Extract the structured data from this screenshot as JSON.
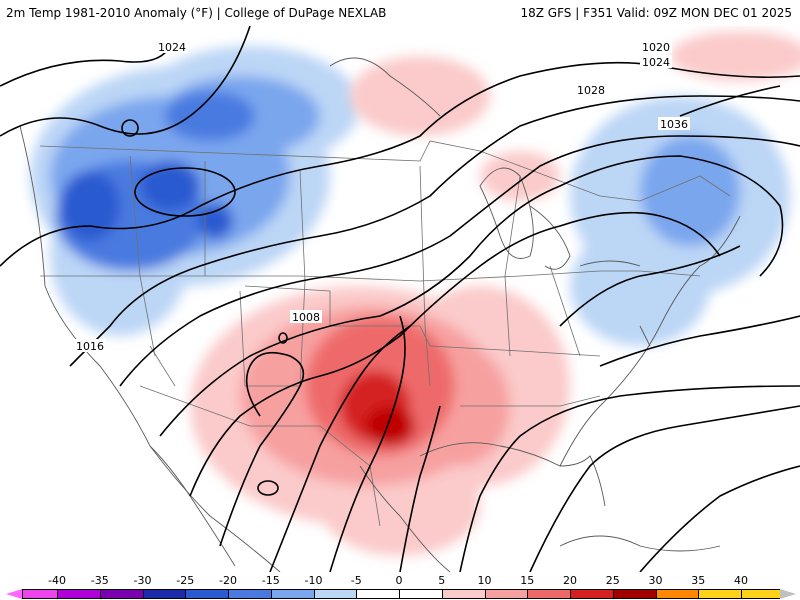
{
  "header": {
    "left_title": "2m Temp 1981-2010 Anomaly (°F) | College of DuPage NEXLAB",
    "right_title": "18Z GFS | F351 Valid: 09Z MON DEC 01 2025"
  },
  "isobar_labels": [
    "1024",
    "1020",
    "1024",
    "1028",
    "1036",
    "1008",
    "1016"
  ],
  "legend": {
    "ticks": [
      "-40",
      "-35",
      "-30",
      "-25",
      "-20",
      "-15",
      "-10",
      "-5",
      "0",
      "5",
      "10",
      "15",
      "20",
      "25",
      "30",
      "35",
      "40"
    ],
    "colors": [
      "#ee44ee",
      "#b000d8",
      "#7a00b0",
      "#1a2aa8",
      "#2a5ad0",
      "#4a7ae0",
      "#7aa6ee",
      "#bcd6f6",
      "#ffffff",
      "#ffffff",
      "#fbcaca",
      "#f7a0a0",
      "#ee6a6a",
      "#d42020",
      "#a00000",
      "#ff8800",
      "#ffd21a"
    ],
    "below_min_color": "#ff66ff",
    "above_max_color": "#c0c0c0"
  }
}
